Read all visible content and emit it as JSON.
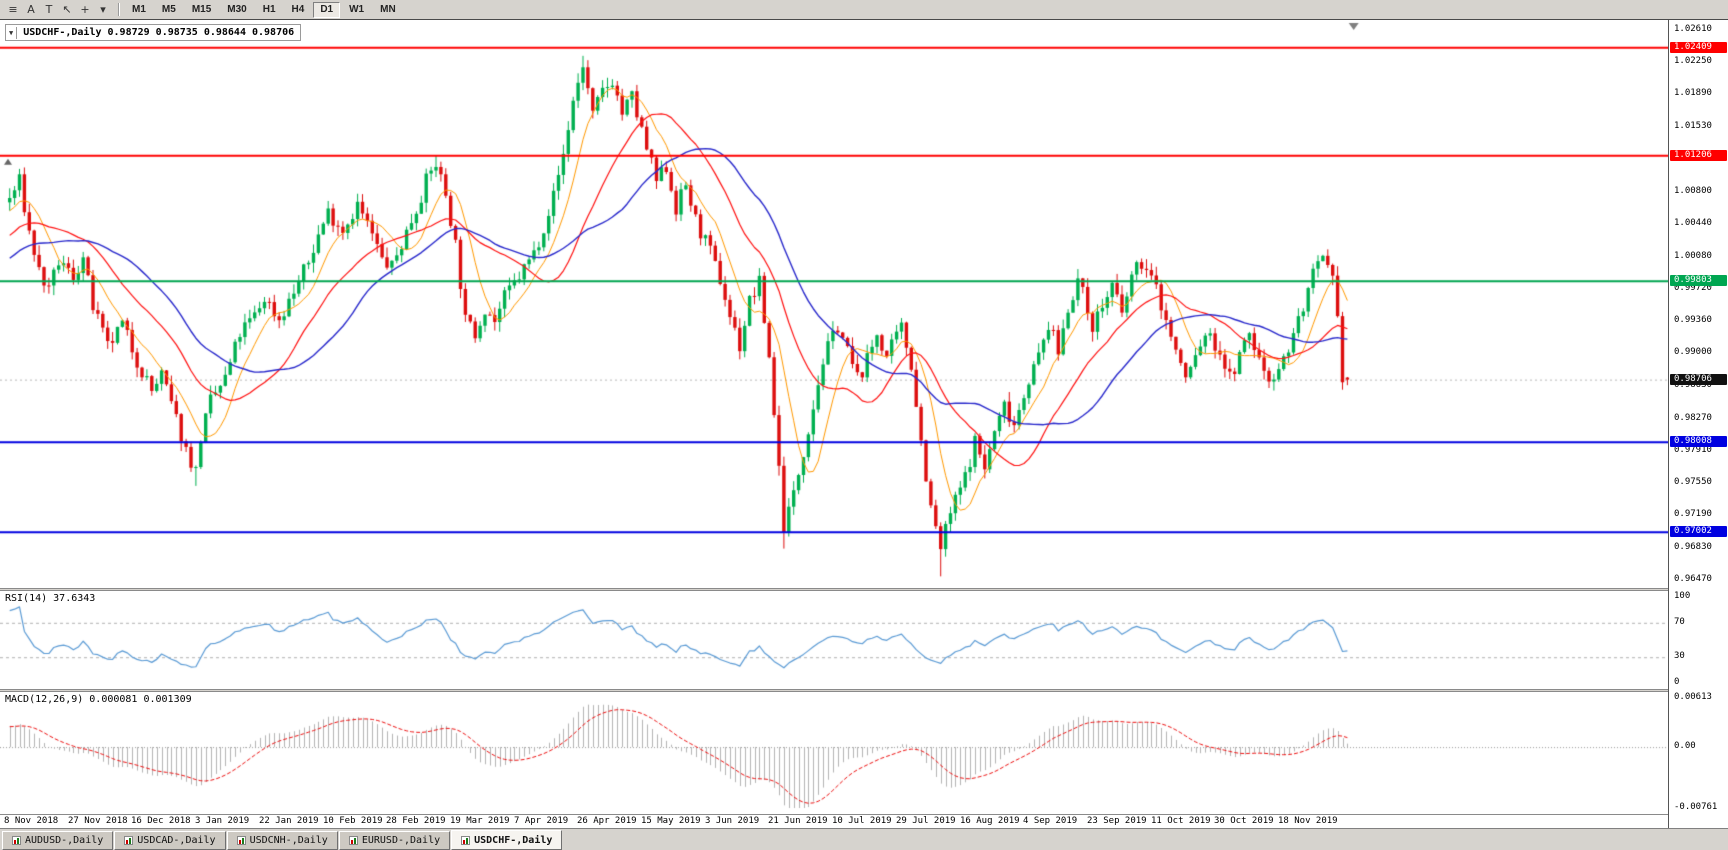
{
  "app": {
    "toolbar": {
      "tools": [
        {
          "name": "chart-list-icon",
          "glyph": "≡"
        },
        {
          "name": "text-label-icon",
          "glyph": "A"
        },
        {
          "name": "text-tool-icon",
          "glyph": "T"
        },
        {
          "name": "cursor-icon",
          "glyph": "↖"
        },
        {
          "name": "crosshair-icon",
          "glyph": "+"
        },
        {
          "name": "tools-dropdown-icon",
          "glyph": "▾"
        }
      ],
      "timeframes": [
        "M1",
        "M5",
        "M15",
        "M30",
        "H1",
        "H4",
        "D1",
        "W1",
        "MN"
      ],
      "active_timeframe": "D1"
    },
    "tabs": [
      "AUDUSD-,Daily",
      "USDCAD-,Daily",
      "USDCNH-,Daily",
      "EURUSD-,Daily",
      "USDCHF-,Daily"
    ],
    "active_tab": "USDCHF-,Daily"
  },
  "chart_data": {
    "type": "candlestick",
    "symbol": "USDCHF-",
    "period": "Daily",
    "header": {
      "dropdown_glyph": "▼",
      "text": "USDCHF-,Daily 0.98729 0.98735 0.98644 0.98706",
      "open": "0.98729",
      "high": "0.98735",
      "low": "0.98644",
      "close": "0.98706"
    },
    "y_axis": {
      "top": 1.0272,
      "bottom": 0.9638,
      "ticks": [
        "1.02610",
        "1.02250",
        "1.01890",
        "1.01530",
        "1.01170",
        "1.00800",
        "1.00440",
        "1.00080",
        "0.99720",
        "0.99360",
        "0.99000",
        "0.98630",
        "0.98270",
        "0.97910",
        "0.97550",
        "0.97190",
        "0.96830",
        "0.96470"
      ]
    },
    "x_labels": [
      "8 Nov 2018",
      "27 Nov 2018",
      "16 Dec 2018",
      "3 Jan 2019",
      "22 Jan 2019",
      "10 Feb 2019",
      "28 Feb 2019",
      "19 Mar 2019",
      "7 Apr 2019",
      "26 Apr 2019",
      "15 May 2019",
      "3 Jun 2019",
      "21 Jun 2019",
      "10 Jul 2019",
      "29 Jul 2019",
      "16 Aug 2019",
      "4 Sep 2019",
      "23 Sep 2019",
      "11 Oct 2019",
      "30 Oct 2019",
      "18 Nov 2019"
    ],
    "candles_per_label": 13,
    "num_candles": 274,
    "hlines": [
      {
        "label": "1.02409",
        "value": 1.02409,
        "color": "#ff0000",
        "role": "resistance"
      },
      {
        "label": "1.01206",
        "value": 1.01206,
        "color": "#ff0000",
        "role": "resistance"
      },
      {
        "label": "0.99803",
        "value": 0.99803,
        "color": "#00a651",
        "role": "pivot"
      },
      {
        "label": "0.98008",
        "value": 0.98008,
        "color": "#0000e0",
        "role": "support"
      },
      {
        "label": "0.97002",
        "value": 0.97002,
        "color": "#0000e0",
        "role": "support"
      }
    ],
    "current_price": {
      "label": "0.98706",
      "value": 0.98706
    },
    "moving_averages": [
      {
        "period": 8,
        "color": "#ff9900",
        "width": 1
      },
      {
        "period": 21,
        "color": "#ff1111",
        "width": 1.2
      },
      {
        "period": 34,
        "color": "#2929cc",
        "width": 1.4
      }
    ],
    "colors": {
      "bull": "#00b050",
      "bear": "#dd0e0e",
      "current_bg": "#111111"
    },
    "pre_waypoints": [
      [
        -60,
        0.988
      ],
      [
        -40,
        0.992
      ],
      [
        -20,
        0.999
      ],
      [
        -10,
        1.003
      ]
    ],
    "close_waypoints": [
      [
        0,
        1.0072
      ],
      [
        2,
        1.0092
      ],
      [
        4,
        1.0035
      ],
      [
        6,
        0.9992
      ],
      [
        8,
        0.9968
      ],
      [
        10,
        1.0002
      ],
      [
        13,
        0.9986
      ],
      [
        15,
        1.0006
      ],
      [
        17,
        0.9952
      ],
      [
        20,
        0.9906
      ],
      [
        23,
        0.9932
      ],
      [
        26,
        0.9892
      ],
      [
        29,
        0.9858
      ],
      [
        31,
        0.9876
      ],
      [
        34,
        0.9826
      ],
      [
        36,
        0.9792
      ],
      [
        38,
        0.9768
      ],
      [
        39,
        0.9806
      ],
      [
        41,
        0.9846
      ],
      [
        44,
        0.9872
      ],
      [
        47,
        0.9922
      ],
      [
        50,
        0.9942
      ],
      [
        52,
        0.9962
      ],
      [
        55,
        0.9938
      ],
      [
        58,
        0.9968
      ],
      [
        61,
        1.0002
      ],
      [
        63,
        1.0032
      ],
      [
        65,
        1.0058
      ],
      [
        68,
        1.0038
      ],
      [
        71,
        1.0066
      ],
      [
        74,
        1.0032
      ],
      [
        76,
        1.0004
      ],
      [
        78,
        0.9996
      ],
      [
        80,
        1.0022
      ],
      [
        83,
        1.0062
      ],
      [
        85,
        1.0092
      ],
      [
        87,
        1.0112
      ],
      [
        89,
        1.0078
      ],
      [
        91,
        1.0022
      ],
      [
        93,
        0.9936
      ],
      [
        95,
        0.9922
      ],
      [
        97,
        0.9952
      ],
      [
        99,
        0.9936
      ],
      [
        101,
        0.9962
      ],
      [
        104,
        0.9986
      ],
      [
        107,
        1.0012
      ],
      [
        109,
        1.0042
      ],
      [
        111,
        1.0076
      ],
      [
        113,
        1.0122
      ],
      [
        115,
        1.0182
      ],
      [
        117,
        1.0222
      ],
      [
        119,
        1.0165
      ],
      [
        121,
        1.0192
      ],
      [
        123,
        1.0205
      ],
      [
        125,
        1.0168
      ],
      [
        127,
        1.0186
      ],
      [
        130,
        1.0128
      ],
      [
        132,
        1.0092
      ],
      [
        134,
        1.0108
      ],
      [
        136,
        1.0062
      ],
      [
        138,
        1.0088
      ],
      [
        140,
        1.0048
      ],
      [
        143,
        1.0012
      ],
      [
        145,
        0.9982
      ],
      [
        147,
        0.9942
      ],
      [
        149,
        0.9908
      ],
      [
        151,
        0.9958
      ],
      [
        153,
        0.9978
      ],
      [
        155,
        0.9896
      ],
      [
        157,
        0.9772
      ],
      [
        158,
        0.9708
      ],
      [
        160,
        0.9742
      ],
      [
        162,
        0.9792
      ],
      [
        164,
        0.9842
      ],
      [
        166,
        0.9892
      ],
      [
        169,
        0.9932
      ],
      [
        171,
        0.9902
      ],
      [
        173,
        0.9872
      ],
      [
        175,
        0.9892
      ],
      [
        177,
        0.9922
      ],
      [
        179,
        0.9896
      ],
      [
        182,
        0.9928
      ],
      [
        184,
        0.9888
      ],
      [
        186,
        0.9802
      ],
      [
        188,
        0.9726
      ],
      [
        190,
        0.9682
      ],
      [
        192,
        0.9722
      ],
      [
        195,
        0.9762
      ],
      [
        197,
        0.9802
      ],
      [
        199,
        0.9772
      ],
      [
        201,
        0.9812
      ],
      [
        203,
        0.9842
      ],
      [
        205,
        0.9822
      ],
      [
        208,
        0.9872
      ],
      [
        210,
        0.9896
      ],
      [
        212,
        0.9932
      ],
      [
        214,
        0.9902
      ],
      [
        216,
        0.9952
      ],
      [
        218,
        0.9982
      ],
      [
        221,
        0.9932
      ],
      [
        223,
        0.9952
      ],
      [
        225,
        0.9976
      ],
      [
        227,
        0.9942
      ],
      [
        229,
        0.9986
      ],
      [
        231,
        1.0002
      ],
      [
        234,
        0.9972
      ],
      [
        236,
        0.9936
      ],
      [
        238,
        0.9902
      ],
      [
        240,
        0.9872
      ],
      [
        242,
        0.9896
      ],
      [
        244,
        0.9922
      ],
      [
        247,
        0.9902
      ],
      [
        249,
        0.9872
      ],
      [
        251,
        0.9896
      ],
      [
        253,
        0.9922
      ],
      [
        255,
        0.9892
      ],
      [
        257,
        0.9872
      ],
      [
        260,
        0.9892
      ],
      [
        262,
        0.9922
      ],
      [
        264,
        0.9952
      ],
      [
        266,
        0.9986
      ],
      [
        268,
        1.0004
      ],
      [
        270,
        0.9978
      ],
      [
        271,
        0.9934
      ],
      [
        272,
        0.9875
      ],
      [
        273,
        0.98706
      ]
    ],
    "wick_overrides": [
      [
        38,
        "low",
        0.9752
      ],
      [
        87,
        "high",
        1.0121
      ],
      [
        117,
        "high",
        1.0232
      ],
      [
        158,
        "low",
        0.9682
      ],
      [
        190,
        "low",
        0.9651
      ]
    ]
  },
  "rsi": {
    "label": "RSI(14) 37.6343",
    "value": "37.6343",
    "period": 14,
    "color": "#5b9bd5",
    "levels": [
      70,
      30
    ],
    "scale": [
      {
        "label": "100",
        "value": 100
      },
      {
        "label": "70",
        "value": 70
      },
      {
        "label": "30",
        "value": 30
      },
      {
        "label": "0",
        "value": 0
      }
    ]
  },
  "macd": {
    "label": "MACD(12,26,9) 0.000081 0.001309",
    "macd_value": "0.000081",
    "signal_value": "0.001309",
    "fast": 12,
    "slow": 26,
    "signal": 9,
    "hist_color": "#b4b4b4",
    "signal_color": "#ee1111",
    "scale": [
      {
        "label": "0.00613",
        "value": 0.00613
      },
      {
        "label": "0.00",
        "value": 0
      },
      {
        "label": "-0.00761",
        "value": -0.00761
      }
    ]
  }
}
